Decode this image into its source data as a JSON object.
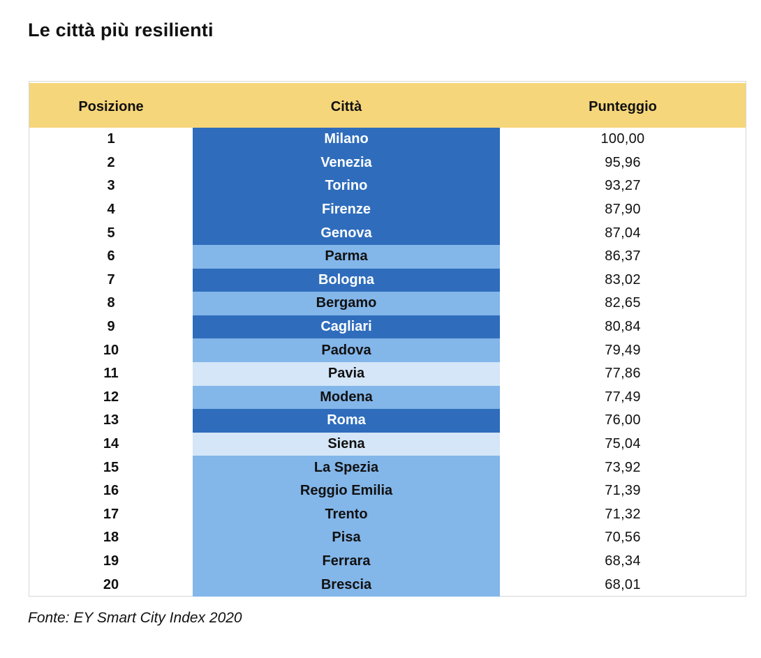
{
  "title": "Le città più resilienti",
  "table": {
    "headers": {
      "position": "Posizione",
      "city": "Città",
      "score": "Punteggio"
    },
    "shade_colors": {
      "dark": "#2f6dbc",
      "mid": "#83b6e9",
      "light": "#d4e6f7",
      "header": "#f6d67a"
    },
    "rows": [
      {
        "position": "1",
        "city": "Milano",
        "score": "100,00",
        "shade": "dark"
      },
      {
        "position": "2",
        "city": "Venezia",
        "score": "95,96",
        "shade": "dark"
      },
      {
        "position": "3",
        "city": "Torino",
        "score": "93,27",
        "shade": "dark"
      },
      {
        "position": "4",
        "city": "Firenze",
        "score": "87,90",
        "shade": "dark"
      },
      {
        "position": "5",
        "city": "Genova",
        "score": "87,04",
        "shade": "dark"
      },
      {
        "position": "6",
        "city": "Parma",
        "score": "86,37",
        "shade": "mid"
      },
      {
        "position": "7",
        "city": "Bologna",
        "score": "83,02",
        "shade": "dark"
      },
      {
        "position": "8",
        "city": "Bergamo",
        "score": "82,65",
        "shade": "mid"
      },
      {
        "position": "9",
        "city": "Cagliari",
        "score": "80,84",
        "shade": "dark"
      },
      {
        "position": "10",
        "city": "Padova",
        "score": "79,49",
        "shade": "mid"
      },
      {
        "position": "11",
        "city": "Pavia",
        "score": "77,86",
        "shade": "light"
      },
      {
        "position": "12",
        "city": "Modena",
        "score": "77,49",
        "shade": "mid"
      },
      {
        "position": "13",
        "city": "Roma",
        "score": "76,00",
        "shade": "dark"
      },
      {
        "position": "14",
        "city": "Siena",
        "score": "75,04",
        "shade": "light"
      },
      {
        "position": "15",
        "city": "La Spezia",
        "score": "73,92",
        "shade": "mid"
      },
      {
        "position": "16",
        "city": "Reggio Emilia",
        "score": "71,39",
        "shade": "mid"
      },
      {
        "position": "17",
        "city": "Trento",
        "score": "71,32",
        "shade": "mid"
      },
      {
        "position": "18",
        "city": "Pisa",
        "score": "70,56",
        "shade": "mid"
      },
      {
        "position": "19",
        "city": "Ferrara",
        "score": "68,34",
        "shade": "mid"
      },
      {
        "position": "20",
        "city": "Brescia",
        "score": "68,01",
        "shade": "mid"
      }
    ]
  },
  "source": "Fonte: EY Smart City Index 2020"
}
